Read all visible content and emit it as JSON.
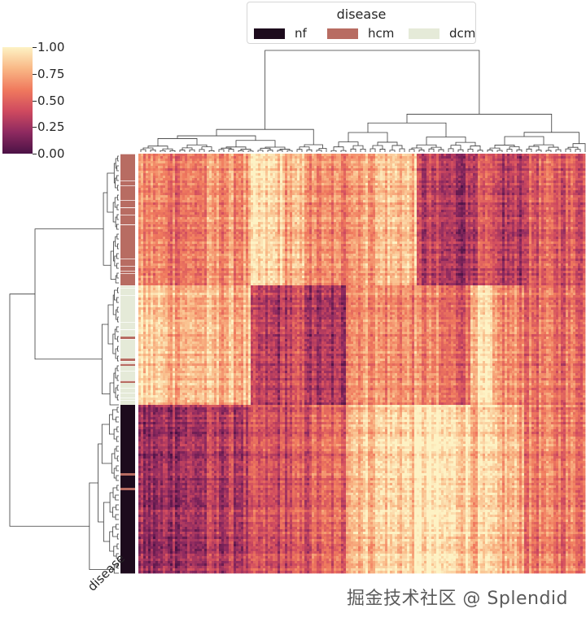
{
  "chart_data": {
    "type": "heatmap",
    "subtype": "clustermap",
    "colormap": "magma-like (low = purple, high = cream)",
    "colormap_stops": [
      "#4b1246",
      "#8e2a60",
      "#cf4a5f",
      "#f07a5e",
      "#f9b886",
      "#fdf2c4"
    ],
    "colorbar": {
      "vmin": 0.0,
      "vmax": 1.0,
      "ticks": [
        0.0,
        0.25,
        0.5,
        0.75,
        1.0
      ],
      "tick_labels": [
        "0.00",
        "0.25",
        "0.50",
        "0.75",
        "1.00"
      ]
    },
    "legend": {
      "title": "disease",
      "entries": [
        {
          "label": "nf",
          "color": "#1d0b1d"
        },
        {
          "label": "hcm",
          "color": "#b86c62"
        },
        {
          "label": "dcm",
          "color": "#e5ead8"
        }
      ]
    },
    "row_color_axis_label": "disease",
    "row_groups": [
      {
        "label": "hcm",
        "row_fraction": 0.315
      },
      {
        "label": "dcm",
        "row_fraction": 0.285
      },
      {
        "label": "nf",
        "row_fraction": 0.4
      }
    ],
    "column_blocks": [
      {
        "col_fraction": 0.055,
        "hcm": 0.62,
        "dcm": 0.86,
        "nf": 0.2
      },
      {
        "col_fraction": 0.1,
        "hcm": 0.58,
        "dcm": 0.8,
        "nf": 0.26
      },
      {
        "col_fraction": 0.1,
        "hcm": 0.66,
        "dcm": 0.78,
        "nf": 0.32
      },
      {
        "col_fraction": 0.07,
        "hcm": 0.88,
        "dcm": 0.3,
        "nf": 0.4
      },
      {
        "col_fraction": 0.06,
        "hcm": 0.76,
        "dcm": 0.38,
        "nf": 0.44
      },
      {
        "col_fraction": 0.08,
        "hcm": 0.62,
        "dcm": 0.26,
        "nf": 0.5
      },
      {
        "col_fraction": 0.07,
        "hcm": 0.74,
        "dcm": 0.7,
        "nf": 0.85
      },
      {
        "col_fraction": 0.09,
        "hcm": 0.82,
        "dcm": 0.66,
        "nf": 0.9
      },
      {
        "col_fraction": 0.05,
        "hcm": 0.32,
        "dcm": 0.62,
        "nf": 0.96
      },
      {
        "col_fraction": 0.07,
        "hcm": 0.26,
        "dcm": 0.52,
        "nf": 0.92
      },
      {
        "col_fraction": 0.05,
        "hcm": 0.4,
        "dcm": 0.88,
        "nf": 0.84
      },
      {
        "col_fraction": 0.07,
        "hcm": 0.3,
        "dcm": 0.64,
        "nf": 0.78
      },
      {
        "col_fraction": 0.095,
        "hcm": 0.46,
        "dcm": 0.56,
        "nf": 0.6
      }
    ],
    "row_dendrogram_top_split": [
      "hcm+dcm",
      "nf"
    ],
    "col_dendrogram_top_split": [
      "left cluster",
      "right cluster"
    ]
  },
  "watermark": "掘金技术社区 @ Splendid"
}
